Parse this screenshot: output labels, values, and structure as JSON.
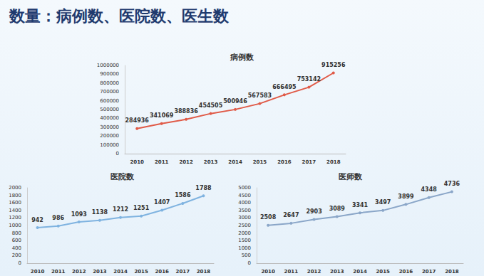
{
  "title": "数量：病例数、医院数、医生数",
  "chart_data": [
    {
      "type": "line",
      "title": "病例数",
      "categories": [
        "2010",
        "2011",
        "2012",
        "2013",
        "2014",
        "2015",
        "2016",
        "2017",
        "2018"
      ],
      "values": [
        284936,
        341069,
        388836,
        454505,
        500946,
        567583,
        666495,
        753142,
        915256
      ],
      "color": "#e05a47",
      "marker": "circle",
      "line_style": "solid",
      "ylim": [
        0,
        1000000
      ],
      "yticks": [
        0,
        100000,
        200000,
        300000,
        400000,
        500000,
        600000,
        700000,
        800000,
        900000,
        1000000
      ],
      "grid": false,
      "data_labels": true
    },
    {
      "type": "line",
      "title": "医院数",
      "categories": [
        "2010",
        "2011",
        "2012",
        "2013",
        "2014",
        "2015",
        "2016",
        "2017",
        "2018"
      ],
      "values": [
        942,
        986,
        1093,
        1138,
        1212,
        1251,
        1407,
        1586,
        1788
      ],
      "color": "#7fb3e0",
      "marker": "circle",
      "line_style": "solid",
      "ylim": [
        0,
        2000
      ],
      "yticks": [
        0,
        200,
        400,
        600,
        800,
        1000,
        1200,
        1400,
        1600,
        1800,
        2000
      ],
      "grid": false,
      "data_labels": true
    },
    {
      "type": "line",
      "title": "医师数",
      "categories": [
        "2010",
        "2011",
        "2012",
        "2013",
        "2014",
        "2015",
        "2016",
        "2017",
        "2018"
      ],
      "values": [
        2508,
        2647,
        2903,
        3089,
        3341,
        3497,
        3899,
        4348,
        4736
      ],
      "color": "#8aa6c8",
      "marker": "circle",
      "line_style": "solid",
      "ylim": [
        0,
        5000
      ],
      "yticks": [
        0,
        500,
        1000,
        1500,
        2000,
        2500,
        3000,
        3500,
        4000,
        4500,
        5000
      ],
      "grid": false,
      "data_labels": true
    }
  ]
}
